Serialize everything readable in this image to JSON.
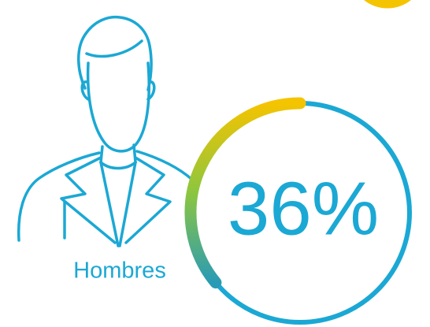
{
  "chart_data": {
    "type": "gauge",
    "categories": [
      "Hombres"
    ],
    "values": [
      36
    ],
    "value_labels": [
      "36%"
    ],
    "ylim": [
      0,
      100
    ],
    "ring_color": "#1ba8d4",
    "gradient": [
      "#f5c400",
      "#8cc63f",
      "#2a9bb5"
    ]
  }
}
